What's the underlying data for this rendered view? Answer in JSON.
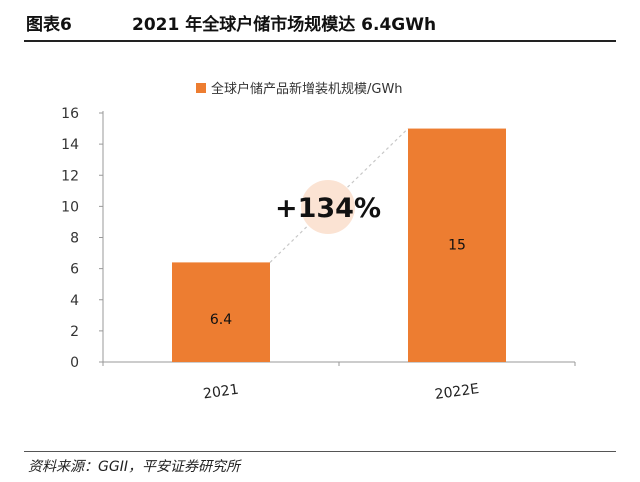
{
  "header": {
    "figure_label": "图表6",
    "title": "2021 年全球户储市场规模达 6.4GWh"
  },
  "source": "资料来源：GGII，平安证券研究所",
  "colors": {
    "bar": "#ED7D31",
    "bubble": "#FBE3D3",
    "axis": "#999999"
  },
  "chart_data": {
    "type": "bar",
    "categories": [
      "2021",
      "2022E"
    ],
    "series": [
      {
        "name": "全球户储产品新增装机规模/GWh",
        "values": [
          6.4,
          15
        ]
      }
    ],
    "data_labels": [
      "6.4",
      "15"
    ],
    "ylim": [
      0,
      16
    ],
    "yticks": [
      0,
      2,
      4,
      6,
      8,
      10,
      12,
      14,
      16
    ],
    "annotation": "+134%",
    "legend_position": "top-center",
    "grid": false,
    "xlabel": "",
    "ylabel": ""
  }
}
